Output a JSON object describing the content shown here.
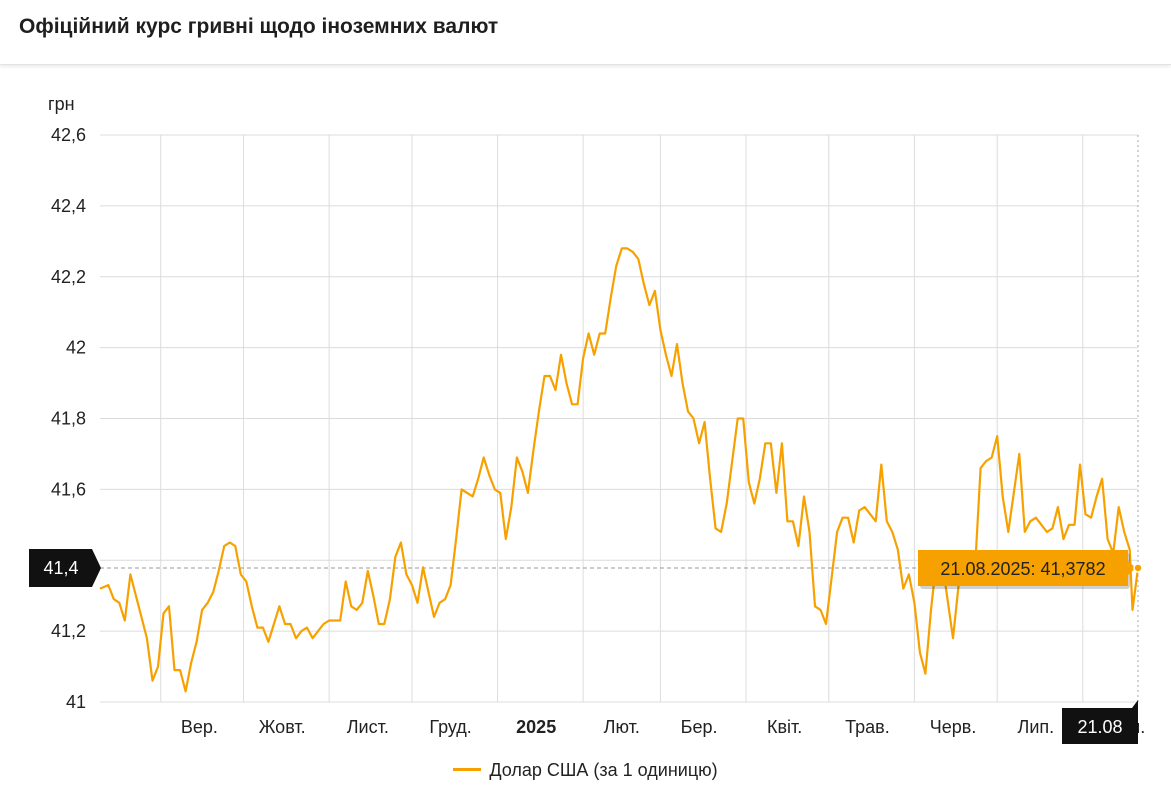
{
  "header": {
    "title": "Офіційний курс гривні щодо іноземних валют"
  },
  "colors": {
    "series": "#F7A100",
    "tooltip_bg": "#F7A100",
    "marker_bg": "#111111",
    "grid": "#dcdcdc"
  },
  "chart_data": {
    "type": "line",
    "ylabel": "грн",
    "ylim": [
      41.0,
      42.6
    ],
    "yticks": [
      42.6,
      42.4,
      42.2,
      42.0,
      41.8,
      41.6,
      41.4,
      41.2,
      41.0
    ],
    "ytick_labels": [
      "42,6",
      "42,4",
      "42,2",
      "42",
      "41,8",
      "41,6",
      "41,4",
      "41,2",
      "41"
    ],
    "x_start": "2024-08-10",
    "x_end": "2025-08-21",
    "xticks": [
      {
        "date": "2024-09-01",
        "label": "Вер.",
        "bold": false
      },
      {
        "date": "2024-10-01",
        "label": "Жовт.",
        "bold": false
      },
      {
        "date": "2024-11-01",
        "label": "Лист.",
        "bold": false
      },
      {
        "date": "2024-12-01",
        "label": "Груд.",
        "bold": false
      },
      {
        "date": "2025-01-01",
        "label": "2025",
        "bold": true
      },
      {
        "date": "2025-02-01",
        "label": "Лют.",
        "bold": false
      },
      {
        "date": "2025-03-01",
        "label": "Бер.",
        "bold": false
      },
      {
        "date": "2025-04-01",
        "label": "Квіт.",
        "bold": false
      },
      {
        "date": "2025-05-01",
        "label": "Трав.",
        "bold": false
      },
      {
        "date": "2025-06-01",
        "label": "Черв.",
        "bold": false
      },
      {
        "date": "2025-07-01",
        "label": "Лип.",
        "bold": false
      },
      {
        "date": "2025-08-01",
        "label": "Серп.",
        "bold": false
      }
    ],
    "grid": true,
    "legend_position": "bottom-center",
    "series": [
      {
        "name": "Долар США (за 1 одиницю)",
        "points": [
          [
            "2024-08-10",
            41.32
          ],
          [
            "2024-08-13",
            41.33
          ],
          [
            "2024-08-15",
            41.29
          ],
          [
            "2024-08-17",
            41.28
          ],
          [
            "2024-08-19",
            41.23
          ],
          [
            "2024-08-21",
            41.36
          ],
          [
            "2024-08-23",
            41.3
          ],
          [
            "2024-08-25",
            41.24
          ],
          [
            "2024-08-27",
            41.18
          ],
          [
            "2024-08-29",
            41.06
          ],
          [
            "2024-08-31",
            41.1
          ],
          [
            "2024-09-02",
            41.25
          ],
          [
            "2024-09-04",
            41.27
          ],
          [
            "2024-09-06",
            41.09
          ],
          [
            "2024-09-08",
            41.09
          ],
          [
            "2024-09-10",
            41.03
          ],
          [
            "2024-09-12",
            41.11
          ],
          [
            "2024-09-14",
            41.17
          ],
          [
            "2024-09-16",
            41.26
          ],
          [
            "2024-09-18",
            41.28
          ],
          [
            "2024-09-20",
            41.31
          ],
          [
            "2024-09-22",
            41.37
          ],
          [
            "2024-09-24",
            41.44
          ],
          [
            "2024-09-26",
            41.45
          ],
          [
            "2024-09-28",
            41.44
          ],
          [
            "2024-09-30",
            41.36
          ],
          [
            "2024-10-02",
            41.34
          ],
          [
            "2024-10-04",
            41.27
          ],
          [
            "2024-10-06",
            41.21
          ],
          [
            "2024-10-08",
            41.21
          ],
          [
            "2024-10-10",
            41.17
          ],
          [
            "2024-10-12",
            41.22
          ],
          [
            "2024-10-14",
            41.27
          ],
          [
            "2024-10-16",
            41.22
          ],
          [
            "2024-10-18",
            41.22
          ],
          [
            "2024-10-20",
            41.18
          ],
          [
            "2024-10-22",
            41.2
          ],
          [
            "2024-10-24",
            41.21
          ],
          [
            "2024-10-26",
            41.18
          ],
          [
            "2024-10-28",
            41.2
          ],
          [
            "2024-10-30",
            41.22
          ],
          [
            "2024-11-01",
            41.23
          ],
          [
            "2024-11-03",
            41.23
          ],
          [
            "2024-11-05",
            41.23
          ],
          [
            "2024-11-07",
            41.34
          ],
          [
            "2024-11-09",
            41.27
          ],
          [
            "2024-11-11",
            41.26
          ],
          [
            "2024-11-13",
            41.28
          ],
          [
            "2024-11-15",
            41.37
          ],
          [
            "2024-11-17",
            41.3
          ],
          [
            "2024-11-19",
            41.22
          ],
          [
            "2024-11-21",
            41.22
          ],
          [
            "2024-11-23",
            41.29
          ],
          [
            "2024-11-25",
            41.41
          ],
          [
            "2024-11-27",
            41.45
          ],
          [
            "2024-11-29",
            41.36
          ],
          [
            "2024-12-01",
            41.33
          ],
          [
            "2024-12-03",
            41.28
          ],
          [
            "2024-12-05",
            41.38
          ],
          [
            "2024-12-07",
            41.31
          ],
          [
            "2024-12-09",
            41.24
          ],
          [
            "2024-12-11",
            41.28
          ],
          [
            "2024-12-13",
            41.29
          ],
          [
            "2024-12-15",
            41.33
          ],
          [
            "2024-12-17",
            41.46
          ],
          [
            "2024-12-19",
            41.6
          ],
          [
            "2024-12-21",
            41.59
          ],
          [
            "2024-12-23",
            41.58
          ],
          [
            "2024-12-25",
            41.63
          ],
          [
            "2024-12-27",
            41.69
          ],
          [
            "2024-12-29",
            41.64
          ],
          [
            "2024-12-31",
            41.6
          ],
          [
            "2025-01-02",
            41.59
          ],
          [
            "2025-01-04",
            41.46
          ],
          [
            "2025-01-06",
            41.55
          ],
          [
            "2025-01-08",
            41.69
          ],
          [
            "2025-01-10",
            41.65
          ],
          [
            "2025-01-12",
            41.59
          ],
          [
            "2025-01-14",
            41.71
          ],
          [
            "2025-01-16",
            41.82
          ],
          [
            "2025-01-18",
            41.92
          ],
          [
            "2025-01-20",
            41.92
          ],
          [
            "2025-01-22",
            41.88
          ],
          [
            "2025-01-24",
            41.98
          ],
          [
            "2025-01-26",
            41.9
          ],
          [
            "2025-01-28",
            41.84
          ],
          [
            "2025-01-30",
            41.84
          ],
          [
            "2025-02-01",
            41.97
          ],
          [
            "2025-02-03",
            42.04
          ],
          [
            "2025-02-05",
            41.98
          ],
          [
            "2025-02-07",
            42.04
          ],
          [
            "2025-02-09",
            42.04
          ],
          [
            "2025-02-11",
            42.14
          ],
          [
            "2025-02-13",
            42.23
          ],
          [
            "2025-02-15",
            42.28
          ],
          [
            "2025-02-17",
            42.28
          ],
          [
            "2025-02-19",
            42.27
          ],
          [
            "2025-02-21",
            42.25
          ],
          [
            "2025-02-23",
            42.18
          ],
          [
            "2025-02-25",
            42.12
          ],
          [
            "2025-02-27",
            42.16
          ],
          [
            "2025-03-01",
            42.05
          ],
          [
            "2025-03-03",
            41.98
          ],
          [
            "2025-03-05",
            41.92
          ],
          [
            "2025-03-07",
            42.01
          ],
          [
            "2025-03-09",
            41.9
          ],
          [
            "2025-03-11",
            41.82
          ],
          [
            "2025-03-13",
            41.8
          ],
          [
            "2025-03-15",
            41.73
          ],
          [
            "2025-03-17",
            41.79
          ],
          [
            "2025-03-19",
            41.63
          ],
          [
            "2025-03-21",
            41.49
          ],
          [
            "2025-03-23",
            41.48
          ],
          [
            "2025-03-25",
            41.56
          ],
          [
            "2025-03-27",
            41.68
          ],
          [
            "2025-03-29",
            41.8
          ],
          [
            "2025-03-31",
            41.8
          ],
          [
            "2025-04-02",
            41.62
          ],
          [
            "2025-04-04",
            41.56
          ],
          [
            "2025-04-06",
            41.63
          ],
          [
            "2025-04-08",
            41.73
          ],
          [
            "2025-04-10",
            41.73
          ],
          [
            "2025-04-12",
            41.59
          ],
          [
            "2025-04-14",
            41.73
          ],
          [
            "2025-04-16",
            41.51
          ],
          [
            "2025-04-18",
            41.51
          ],
          [
            "2025-04-20",
            41.44
          ],
          [
            "2025-04-22",
            41.58
          ],
          [
            "2025-04-24",
            41.48
          ],
          [
            "2025-04-26",
            41.27
          ],
          [
            "2025-04-28",
            41.26
          ],
          [
            "2025-04-30",
            41.22
          ],
          [
            "2025-05-02",
            41.35
          ],
          [
            "2025-05-04",
            41.48
          ],
          [
            "2025-05-06",
            41.52
          ],
          [
            "2025-05-08",
            41.52
          ],
          [
            "2025-05-10",
            41.45
          ],
          [
            "2025-05-12",
            41.54
          ],
          [
            "2025-05-14",
            41.55
          ],
          [
            "2025-05-16",
            41.53
          ],
          [
            "2025-05-18",
            41.51
          ],
          [
            "2025-05-20",
            41.67
          ],
          [
            "2025-05-22",
            41.51
          ],
          [
            "2025-05-24",
            41.48
          ],
          [
            "2025-05-26",
            41.43
          ],
          [
            "2025-05-28",
            41.32
          ],
          [
            "2025-05-30",
            41.36
          ],
          [
            "2025-06-01",
            41.28
          ],
          [
            "2025-06-03",
            41.14
          ],
          [
            "2025-06-05",
            41.08
          ],
          [
            "2025-06-07",
            41.26
          ],
          [
            "2025-06-09",
            41.4
          ],
          [
            "2025-06-11",
            41.4
          ],
          [
            "2025-06-13",
            41.29
          ],
          [
            "2025-06-15",
            41.18
          ],
          [
            "2025-06-17",
            41.33
          ],
          [
            "2025-06-19",
            41.38
          ],
          [
            "2025-06-21",
            41.39
          ],
          [
            "2025-06-23",
            41.38
          ],
          [
            "2025-06-25",
            41.66
          ],
          [
            "2025-06-27",
            41.68
          ],
          [
            "2025-06-29",
            41.69
          ],
          [
            "2025-07-01",
            41.75
          ],
          [
            "2025-07-03",
            41.58
          ],
          [
            "2025-07-05",
            41.48
          ],
          [
            "2025-07-07",
            41.59
          ],
          [
            "2025-07-09",
            41.7
          ],
          [
            "2025-07-11",
            41.48
          ],
          [
            "2025-07-13",
            41.51
          ],
          [
            "2025-07-15",
            41.52
          ],
          [
            "2025-07-17",
            41.5
          ],
          [
            "2025-07-19",
            41.48
          ],
          [
            "2025-07-21",
            41.49
          ],
          [
            "2025-07-23",
            41.55
          ],
          [
            "2025-07-25",
            41.46
          ],
          [
            "2025-07-27",
            41.5
          ],
          [
            "2025-07-29",
            41.5
          ],
          [
            "2025-07-31",
            41.67
          ],
          [
            "2025-08-02",
            41.53
          ],
          [
            "2025-08-04",
            41.52
          ],
          [
            "2025-08-06",
            41.58
          ],
          [
            "2025-08-08",
            41.63
          ],
          [
            "2025-08-10",
            41.46
          ],
          [
            "2025-08-12",
            41.42
          ],
          [
            "2025-08-14",
            41.55
          ],
          [
            "2025-08-16",
            41.48
          ],
          [
            "2025-08-18",
            41.43
          ],
          [
            "2025-08-19",
            41.26
          ],
          [
            "2025-08-21",
            41.3782
          ]
        ]
      }
    ],
    "tooltip": {
      "date": "2025-08-21",
      "value": 41.3782,
      "text": "21.08.2025: 41,3782"
    },
    "crosshair": {
      "y_label": "41,4",
      "x_label": "21.08"
    }
  }
}
